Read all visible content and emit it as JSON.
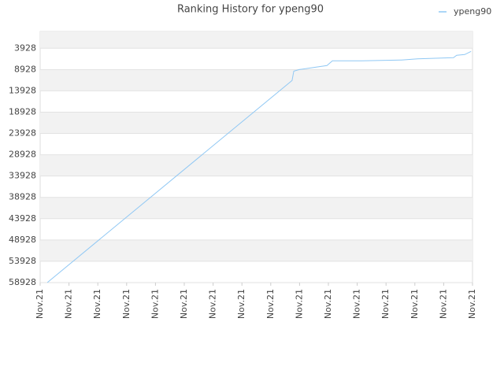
{
  "chart_data": {
    "type": "line",
    "title": "Ranking History for ypeng90",
    "series": [
      {
        "name": "ypeng90",
        "color": "#90c8f4",
        "x": [
          0.25,
          8.74,
          8.8,
          8.99,
          9.95,
          10.14,
          11.17,
          12.54,
          13.09,
          14.34,
          14.45,
          14.73,
          14.95
        ],
        "values": [
          58900,
          11500,
          9300,
          8930,
          8000,
          6890,
          6890,
          6700,
          6430,
          6150,
          5590,
          5410,
          4670
        ]
      }
    ],
    "xlim": [
      0,
      15
    ],
    "xticks": [
      {
        "value": 0,
        "label": "Nov.21"
      },
      {
        "value": 1,
        "label": "Nov.21"
      },
      {
        "value": 2,
        "label": "Nov.21"
      },
      {
        "value": 3,
        "label": "Nov.21"
      },
      {
        "value": 4,
        "label": "Nov.21"
      },
      {
        "value": 5,
        "label": "Nov.21"
      },
      {
        "value": 6,
        "label": "Nov.21"
      },
      {
        "value": 7,
        "label": "Nov.21"
      },
      {
        "value": 8,
        "label": "Nov.21"
      },
      {
        "value": 9,
        "label": "Nov.21"
      },
      {
        "value": 10,
        "label": "Nov.21"
      },
      {
        "value": 11,
        "label": "Nov.21"
      },
      {
        "value": 12,
        "label": "Nov.21"
      },
      {
        "value": 13,
        "label": "Nov.21"
      },
      {
        "value": 14,
        "label": "Nov.21"
      },
      {
        "value": 15,
        "label": "Nov.21"
      }
    ],
    "ylim": [
      58928,
      0
    ],
    "yticks": [
      3928,
      8928,
      13928,
      18928,
      23928,
      28928,
      33928,
      38928,
      43928,
      48928,
      53928,
      58928
    ],
    "grid": true,
    "legend": "top-right"
  }
}
